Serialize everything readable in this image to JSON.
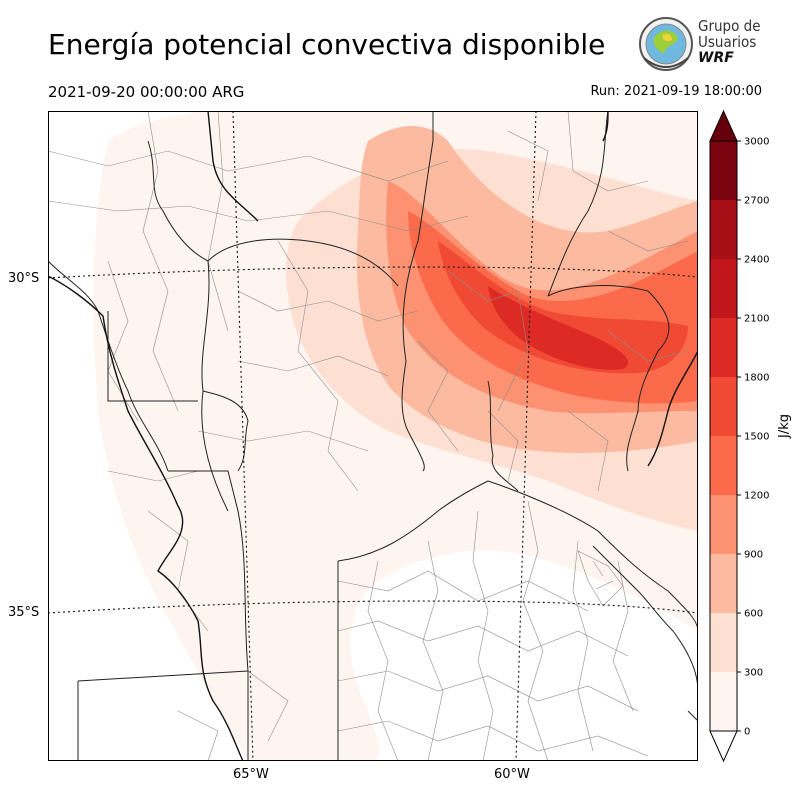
{
  "header": {
    "title": "Energía potencial convectiva disponible",
    "valid_time": "2021-09-20 00:00:00 ARG",
    "run_time": "Run: 2021-09-19 18:00:00"
  },
  "logo": {
    "line1": "Grupo de",
    "line2": "Usuarios",
    "line3": "WRF"
  },
  "map": {
    "lat_labels": [
      "30°S",
      "35°S"
    ],
    "lon_labels": [
      "65°W",
      "60°W"
    ]
  },
  "colorbar": {
    "unit": "J/kg",
    "ticks": [
      "0",
      "300",
      "600",
      "900",
      "1200",
      "1500",
      "1800",
      "2100",
      "2400",
      "2700",
      "3000"
    ],
    "colors": [
      "#fff5f0",
      "#fee0d2",
      "#fcbba1",
      "#fc9272",
      "#fb6a4a",
      "#f04a35",
      "#dd2a25",
      "#c1161b",
      "#a50f15",
      "#7a0510"
    ],
    "over_color": "#67000d"
  }
}
